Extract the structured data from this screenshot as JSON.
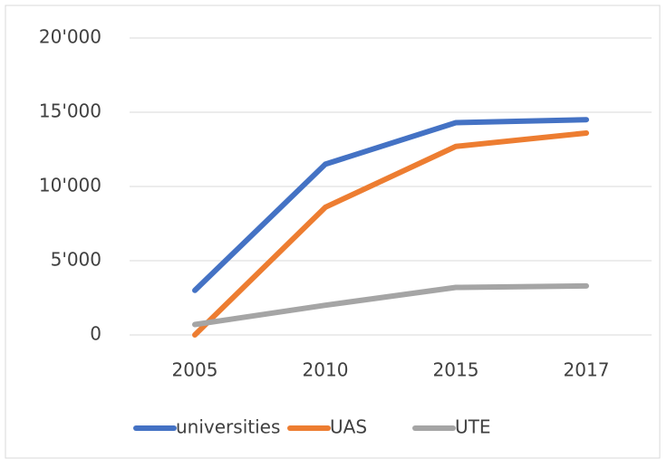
{
  "chart_data": {
    "type": "line",
    "categories": [
      "2005",
      "2010",
      "2015",
      "2017"
    ],
    "series": [
      {
        "name": "universities",
        "color": "#4472c4",
        "values": [
          3000,
          11500,
          14300,
          14500
        ]
      },
      {
        "name": "UAS",
        "color": "#ed7d31",
        "values": [
          0,
          8600,
          12700,
          13600
        ]
      },
      {
        "name": "UTE",
        "color": "#a5a5a5",
        "values": [
          700,
          2000,
          3200,
          3300
        ]
      }
    ],
    "ylim": [
      0,
      20000
    ],
    "yticks": [
      {
        "value": 0,
        "label": "0"
      },
      {
        "value": 5000,
        "label": "5'000"
      },
      {
        "value": 10000,
        "label": "10'000"
      },
      {
        "value": 15000,
        "label": "15'000"
      },
      {
        "value": 20000,
        "label": "20'000"
      }
    ],
    "grid": true,
    "legend": "bottom"
  }
}
